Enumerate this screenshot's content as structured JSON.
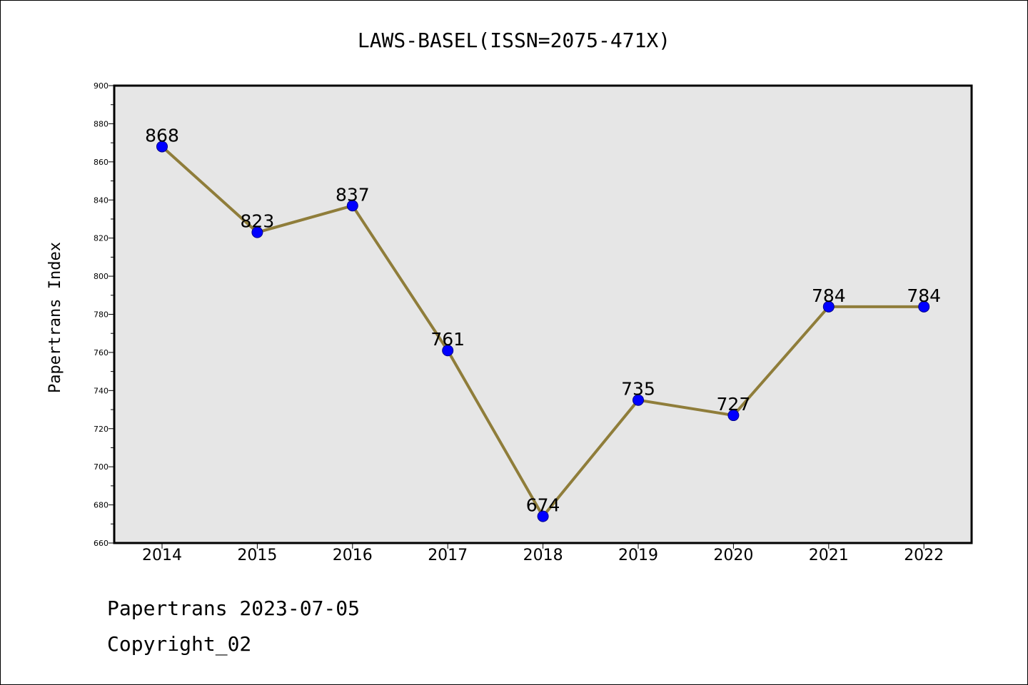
{
  "chart_data": {
    "type": "line",
    "title": "LAWS-BASEL(ISSN=2075-471X)",
    "xlabel": "",
    "ylabel": "Papertrans Index",
    "categories": [
      "2014",
      "2015",
      "2016",
      "2017",
      "2018",
      "2019",
      "2020",
      "2021",
      "2022"
    ],
    "values": [
      868,
      823,
      837,
      761,
      674,
      735,
      727,
      784,
      784
    ],
    "ylim": [
      660,
      900
    ],
    "yticks": [
      660,
      680,
      700,
      720,
      740,
      760,
      780,
      800,
      820,
      840,
      860,
      880,
      900
    ],
    "grid": false,
    "line_color": "#8f7d3a",
    "marker_color": "#0000ff",
    "plot_background": "#e6e6e6"
  },
  "footer": {
    "line1": "Papertrans 2023-07-05",
    "line2": "Copyright_02"
  }
}
